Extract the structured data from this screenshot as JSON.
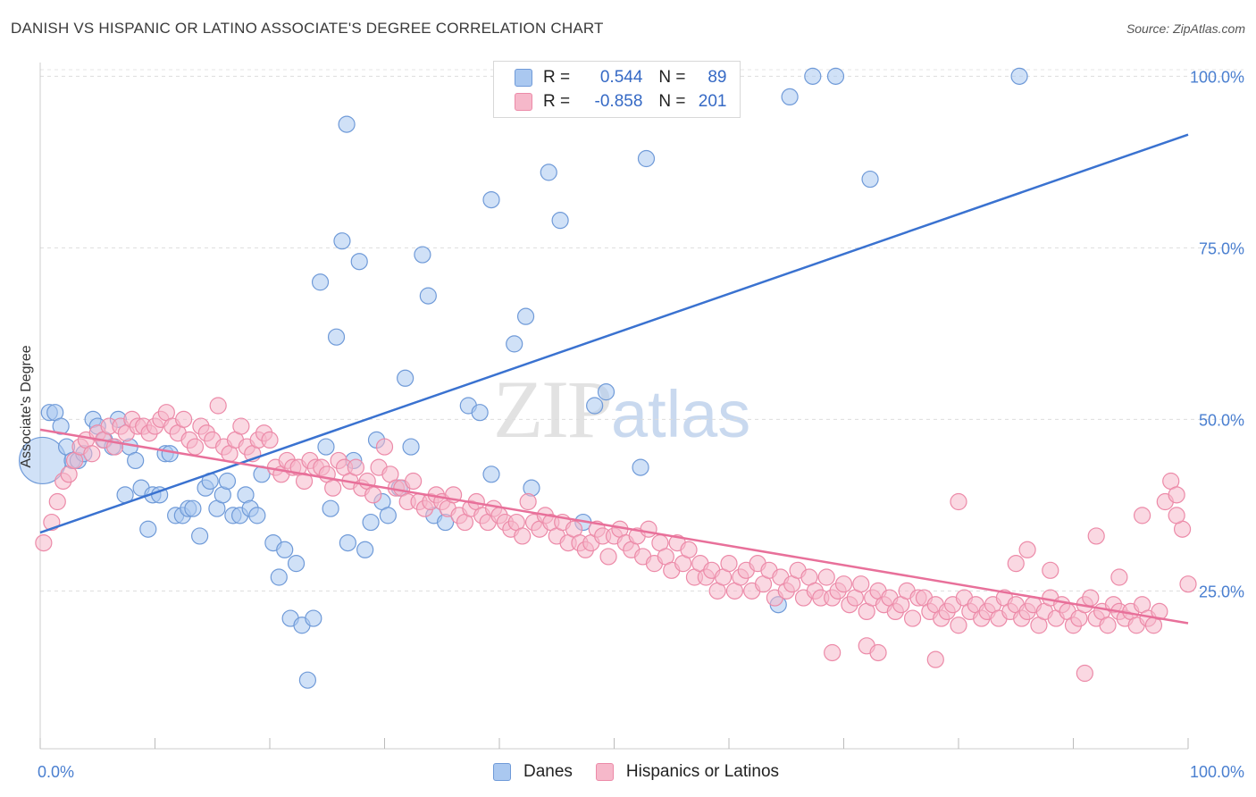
{
  "title": "DANISH VS HISPANIC OR LATINO ASSOCIATE'S DEGREE CORRELATION CHART",
  "source": "Source: ZipAtlas.com",
  "watermark": {
    "zip": "ZIP",
    "atlas": "atlas"
  },
  "legend": {
    "rows": [
      {
        "r_label": "R =",
        "r_value": "0.544",
        "n_label": "N =",
        "n_value": "89",
        "color": "#aac8f0"
      },
      {
        "r_label": "R =",
        "r_value": "-0.858",
        "n_label": "N =",
        "n_value": "201",
        "color": "#f6b8ca"
      }
    ]
  },
  "bottom_legend": [
    {
      "label": "Danes",
      "color": "#aac8f0"
    },
    {
      "label": "Hispanics or Latinos",
      "color": "#f6b8ca"
    }
  ],
  "chart_data": {
    "type": "scatter",
    "title": "DANISH VS HISPANIC OR LATINO ASSOCIATE'S DEGREE CORRELATION CHART",
    "xlabel": "",
    "ylabel": "Associate's Degree",
    "xlim": [
      0,
      100
    ],
    "ylim": [
      2,
      102
    ],
    "x_tick_labels": [
      "0.0%",
      "100.0%"
    ],
    "y_ticks": [
      25,
      50,
      75,
      100
    ],
    "y_tick_labels": [
      "25.0%",
      "50.0%",
      "75.0%",
      "100.0%"
    ],
    "grid": true,
    "legend_position": "top-center",
    "series": [
      {
        "name": "Danes",
        "color": "#aac8f0",
        "stroke": "#6f9ad8",
        "trend_color": "#3a72d0",
        "trend": {
          "x": [
            0,
            100
          ],
          "y": [
            33.5,
            91.5
          ]
        },
        "points": [
          [
            0.2,
            44
          ],
          [
            0.8,
            51
          ],
          [
            1.3,
            51
          ],
          [
            1.8,
            49
          ],
          [
            2.3,
            46
          ],
          [
            2.8,
            44
          ],
          [
            3.3,
            44
          ],
          [
            3.8,
            45
          ],
          [
            4.6,
            50
          ],
          [
            5,
            49
          ],
          [
            5.6,
            47
          ],
          [
            6.3,
            46
          ],
          [
            6.8,
            50
          ],
          [
            7.4,
            39
          ],
          [
            7.8,
            46
          ],
          [
            8.3,
            44
          ],
          [
            8.8,
            40
          ],
          [
            9.4,
            34
          ],
          [
            9.8,
            39
          ],
          [
            10.4,
            39
          ],
          [
            10.9,
            45
          ],
          [
            11.3,
            45
          ],
          [
            11.8,
            36
          ],
          [
            12.4,
            36
          ],
          [
            12.9,
            37
          ],
          [
            13.3,
            37
          ],
          [
            13.9,
            33
          ],
          [
            14.4,
            40
          ],
          [
            14.8,
            41
          ],
          [
            15.4,
            37
          ],
          [
            15.9,
            39
          ],
          [
            16.3,
            41
          ],
          [
            16.8,
            36
          ],
          [
            17.4,
            36
          ],
          [
            17.9,
            39
          ],
          [
            18.3,
            37
          ],
          [
            18.9,
            36
          ],
          [
            19.3,
            42
          ],
          [
            20.3,
            32
          ],
          [
            20.8,
            27
          ],
          [
            21.3,
            31
          ],
          [
            21.8,
            21
          ],
          [
            22.3,
            29
          ],
          [
            22.8,
            20
          ],
          [
            23.3,
            12
          ],
          [
            23.8,
            21
          ],
          [
            24.4,
            70
          ],
          [
            24.9,
            46
          ],
          [
            25.3,
            37
          ],
          [
            25.8,
            62
          ],
          [
            26.3,
            76
          ],
          [
            26.8,
            32
          ],
          [
            26.7,
            93
          ],
          [
            27.3,
            44
          ],
          [
            27.8,
            73
          ],
          [
            28.3,
            31
          ],
          [
            28.8,
            35
          ],
          [
            29.3,
            47
          ],
          [
            29.8,
            38
          ],
          [
            30.3,
            36
          ],
          [
            31.3,
            40
          ],
          [
            31.8,
            56
          ],
          [
            32.3,
            46
          ],
          [
            33.3,
            74
          ],
          [
            33.8,
            68
          ],
          [
            34.3,
            36
          ],
          [
            35.3,
            35
          ],
          [
            37.3,
            52
          ],
          [
            38.3,
            51
          ],
          [
            39.3,
            42
          ],
          [
            39.3,
            82
          ],
          [
            41.3,
            61
          ],
          [
            42.3,
            65
          ],
          [
            42.8,
            40
          ],
          [
            44.3,
            86
          ],
          [
            45.3,
            79
          ],
          [
            47.3,
            35
          ],
          [
            48.3,
            52
          ],
          [
            49.3,
            54
          ],
          [
            52.3,
            43
          ],
          [
            52.8,
            88
          ],
          [
            56.3,
            100
          ],
          [
            64.3,
            23
          ],
          [
            65.3,
            97
          ],
          [
            67.3,
            100
          ],
          [
            69.3,
            100
          ],
          [
            72.3,
            85
          ],
          [
            85.3,
            100
          ]
        ]
      },
      {
        "name": "Hispanics or Latinos",
        "color": "#f6b8ca",
        "stroke": "#ec8aa8",
        "trend_color": "#e8709a",
        "trend": {
          "x": [
            0,
            100
          ],
          "y": [
            48.5,
            20.3
          ]
        },
        "points": [
          [
            0.3,
            32
          ],
          [
            1,
            35
          ],
          [
            1.5,
            38
          ],
          [
            2,
            41
          ],
          [
            2.5,
            42
          ],
          [
            3,
            44
          ],
          [
            3.5,
            46
          ],
          [
            4,
            47
          ],
          [
            4.5,
            45
          ],
          [
            5,
            48
          ],
          [
            5.5,
            47
          ],
          [
            6,
            49
          ],
          [
            6.5,
            46
          ],
          [
            7,
            49
          ],
          [
            7.5,
            48
          ],
          [
            8,
            50
          ],
          [
            8.5,
            49
          ],
          [
            9,
            49
          ],
          [
            9.5,
            48
          ],
          [
            10,
            49
          ],
          [
            10.5,
            50
          ],
          [
            11,
            51
          ],
          [
            11.5,
            49
          ],
          [
            12,
            48
          ],
          [
            12.5,
            50
          ],
          [
            13,
            47
          ],
          [
            13.5,
            46
          ],
          [
            14,
            49
          ],
          [
            14.5,
            48
          ],
          [
            15,
            47
          ],
          [
            15.5,
            52
          ],
          [
            16,
            46
          ],
          [
            16.5,
            45
          ],
          [
            17,
            47
          ],
          [
            17.5,
            49
          ],
          [
            18,
            46
          ],
          [
            18.5,
            45
          ],
          [
            19,
            47
          ],
          [
            19.5,
            48
          ],
          [
            20,
            47
          ],
          [
            20.5,
            43
          ],
          [
            21,
            42
          ],
          [
            21.5,
            44
          ],
          [
            22,
            43
          ],
          [
            22.5,
            43
          ],
          [
            23,
            41
          ],
          [
            23.5,
            44
          ],
          [
            24,
            43
          ],
          [
            24.5,
            43
          ],
          [
            25,
            42
          ],
          [
            25.5,
            40
          ],
          [
            26,
            44
          ],
          [
            26.5,
            43
          ],
          [
            27,
            41
          ],
          [
            27.5,
            43
          ],
          [
            28,
            40
          ],
          [
            28.5,
            41
          ],
          [
            29,
            39
          ],
          [
            29.5,
            43
          ],
          [
            30,
            46
          ],
          [
            30.5,
            42
          ],
          [
            31,
            40
          ],
          [
            31.5,
            40
          ],
          [
            32,
            38
          ],
          [
            32.5,
            41
          ],
          [
            33,
            38
          ],
          [
            33.5,
            37
          ],
          [
            34,
            38
          ],
          [
            34.5,
            39
          ],
          [
            35,
            38
          ],
          [
            35.5,
            37
          ],
          [
            36,
            39
          ],
          [
            36.5,
            36
          ],
          [
            37,
            35
          ],
          [
            37.5,
            37
          ],
          [
            38,
            38
          ],
          [
            38.5,
            36
          ],
          [
            39,
            35
          ],
          [
            39.5,
            37
          ],
          [
            40,
            36
          ],
          [
            40.5,
            35
          ],
          [
            41,
            34
          ],
          [
            41.5,
            35
          ],
          [
            42,
            33
          ],
          [
            42.5,
            38
          ],
          [
            43,
            35
          ],
          [
            43.5,
            34
          ],
          [
            44,
            36
          ],
          [
            44.5,
            35
          ],
          [
            45,
            33
          ],
          [
            45.5,
            35
          ],
          [
            46,
            32
          ],
          [
            46.5,
            34
          ],
          [
            47,
            32
          ],
          [
            47.5,
            31
          ],
          [
            48,
            32
          ],
          [
            48.5,
            34
          ],
          [
            49,
            33
          ],
          [
            49.5,
            30
          ],
          [
            50,
            33
          ],
          [
            50.5,
            34
          ],
          [
            51,
            32
          ],
          [
            51.5,
            31
          ],
          [
            52,
            33
          ],
          [
            52.5,
            30
          ],
          [
            53,
            34
          ],
          [
            53.5,
            29
          ],
          [
            54,
            32
          ],
          [
            54.5,
            30
          ],
          [
            55,
            28
          ],
          [
            55.5,
            32
          ],
          [
            56,
            29
          ],
          [
            56.5,
            31
          ],
          [
            57,
            27
          ],
          [
            57.5,
            29
          ],
          [
            58,
            27
          ],
          [
            58.5,
            28
          ],
          [
            59,
            25
          ],
          [
            59.5,
            27
          ],
          [
            60,
            29
          ],
          [
            60.5,
            25
          ],
          [
            61,
            27
          ],
          [
            61.5,
            28
          ],
          [
            62,
            25
          ],
          [
            62.5,
            29
          ],
          [
            63,
            26
          ],
          [
            63.5,
            28
          ],
          [
            64,
            24
          ],
          [
            64.5,
            27
          ],
          [
            65,
            25
          ],
          [
            65.5,
            26
          ],
          [
            66,
            28
          ],
          [
            66.5,
            24
          ],
          [
            67,
            27
          ],
          [
            67.5,
            25
          ],
          [
            68,
            24
          ],
          [
            68.5,
            27
          ],
          [
            69,
            24
          ],
          [
            69.5,
            25
          ],
          [
            70,
            26
          ],
          [
            70.5,
            23
          ],
          [
            71,
            24
          ],
          [
            71.5,
            26
          ],
          [
            72,
            22
          ],
          [
            72.5,
            24
          ],
          [
            73,
            25
          ],
          [
            73.5,
            23
          ],
          [
            74,
            24
          ],
          [
            74.5,
            22
          ],
          [
            75,
            23
          ],
          [
            75.5,
            25
          ],
          [
            76,
            21
          ],
          [
            76.5,
            24
          ],
          [
            77,
            24
          ],
          [
            77.5,
            22
          ],
          [
            78,
            23
          ],
          [
            78.5,
            21
          ],
          [
            79,
            22
          ],
          [
            79.5,
            23
          ],
          [
            80,
            20
          ],
          [
            80.5,
            24
          ],
          [
            81,
            22
          ],
          [
            81.5,
            23
          ],
          [
            82,
            21
          ],
          [
            82.5,
            22
          ],
          [
            83,
            23
          ],
          [
            83.5,
            21
          ],
          [
            84,
            24
          ],
          [
            84.5,
            22
          ],
          [
            85,
            23
          ],
          [
            85.5,
            21
          ],
          [
            86,
            22
          ],
          [
            86.5,
            23
          ],
          [
            87,
            20
          ],
          [
            87.5,
            22
          ],
          [
            88,
            24
          ],
          [
            88.5,
            21
          ],
          [
            89,
            23
          ],
          [
            89.5,
            22
          ],
          [
            90,
            20
          ],
          [
            90.5,
            21
          ],
          [
            91,
            23
          ],
          [
            91.5,
            24
          ],
          [
            92,
            21
          ],
          [
            92.5,
            22
          ],
          [
            93,
            20
          ],
          [
            93.5,
            23
          ],
          [
            94,
            22
          ],
          [
            94.5,
            21
          ],
          [
            95,
            22
          ],
          [
            95.5,
            20
          ],
          [
            96,
            23
          ],
          [
            96.5,
            21
          ],
          [
            97,
            20
          ],
          [
            97.5,
            22
          ],
          [
            98,
            38
          ],
          [
            98.5,
            41
          ],
          [
            99,
            39
          ],
          [
            99.5,
            34
          ],
          [
            100,
            26
          ],
          [
            69,
            16
          ],
          [
            72,
            17
          ],
          [
            73,
            16
          ],
          [
            78,
            15
          ],
          [
            91,
            13
          ],
          [
            80,
            38
          ],
          [
            86,
            31
          ],
          [
            92,
            33
          ],
          [
            96,
            36
          ],
          [
            99,
            36
          ],
          [
            85,
            29
          ],
          [
            88,
            28
          ],
          [
            94,
            27
          ]
        ]
      }
    ]
  }
}
